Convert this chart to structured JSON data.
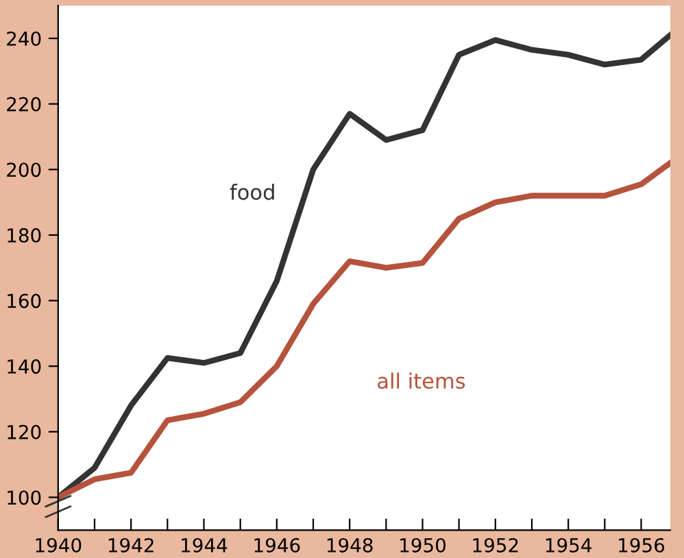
{
  "chart_data": {
    "type": "line",
    "x": [
      1940,
      1941,
      1942,
      1943,
      1944,
      1945,
      1946,
      1947,
      1948,
      1949,
      1950,
      1951,
      1952,
      1953,
      1954,
      1955,
      1956,
      1956.8
    ],
    "series": [
      {
        "name": "food",
        "color": "#333333",
        "values": [
          100,
          109,
          128,
          142.5,
          141,
          144,
          166,
          200,
          217,
          209,
          212,
          235,
          239.5,
          236.5,
          235,
          232,
          233.5,
          241
        ]
      },
      {
        "name": "all items",
        "color": "#b5533c",
        "values": [
          100,
          105.5,
          107.5,
          123.5,
          125.5,
          129,
          140,
          159,
          172,
          170,
          171.5,
          185,
          190,
          192,
          192,
          192,
          195.5,
          202
        ]
      }
    ],
    "xlim": [
      1940,
      1956.8
    ],
    "ylim": [
      90,
      250
    ],
    "xticks": [
      1940,
      {
        "value": 1941,
        "label": null
      },
      1942,
      {
        "value": 1943,
        "label": null
      },
      1944,
      {
        "value": 1945,
        "label": null
      },
      1946,
      {
        "value": 1947,
        "label": null
      },
      1948,
      {
        "value": 1949,
        "label": null
      },
      1950,
      {
        "value": 1951,
        "label": null
      },
      1952,
      {
        "value": 1953,
        "label": null
      },
      1954,
      {
        "value": 1955,
        "label": null
      },
      1956
    ],
    "yticks": [
      100,
      120,
      140,
      160,
      180,
      200,
      220,
      240
    ],
    "grid": false,
    "legend": false,
    "marker": "none",
    "line_style": "solid"
  }
}
